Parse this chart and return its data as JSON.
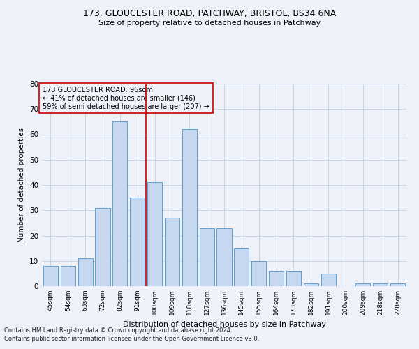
{
  "title1": "173, GLOUCESTER ROAD, PATCHWAY, BRISTOL, BS34 6NA",
  "title2": "Size of property relative to detached houses in Patchway",
  "xlabel": "Distribution of detached houses by size in Patchway",
  "ylabel": "Number of detached properties",
  "footnote1": "Contains HM Land Registry data © Crown copyright and database right 2024.",
  "footnote2": "Contains public sector information licensed under the Open Government Licence v3.0.",
  "categories": [
    "45sqm",
    "54sqm",
    "63sqm",
    "72sqm",
    "82sqm",
    "91sqm",
    "100sqm",
    "109sqm",
    "118sqm",
    "127sqm",
    "136sqm",
    "145sqm",
    "155sqm",
    "164sqm",
    "173sqm",
    "182sqm",
    "191sqm",
    "200sqm",
    "209sqm",
    "218sqm",
    "228sqm"
  ],
  "values": [
    8,
    8,
    11,
    31,
    65,
    35,
    41,
    27,
    62,
    23,
    23,
    15,
    10,
    6,
    6,
    1,
    5,
    0,
    1,
    1,
    1
  ],
  "bar_color": "#c5d8f0",
  "bar_edge_color": "#5a9fd4",
  "reference_line_x": 5.5,
  "reference_line_color": "#cc0000",
  "ylim": [
    0,
    80
  ],
  "yticks": [
    0,
    10,
    20,
    30,
    40,
    50,
    60,
    70,
    80
  ],
  "annotation_box_text": [
    "173 GLOUCESTER ROAD: 96sqm",
    "← 41% of detached houses are smaller (146)",
    "59% of semi-detached houses are larger (207) →"
  ],
  "annotation_box_color": "#cc0000",
  "bg_color": "#eef2f8",
  "grid_color": "#c8d4e4"
}
